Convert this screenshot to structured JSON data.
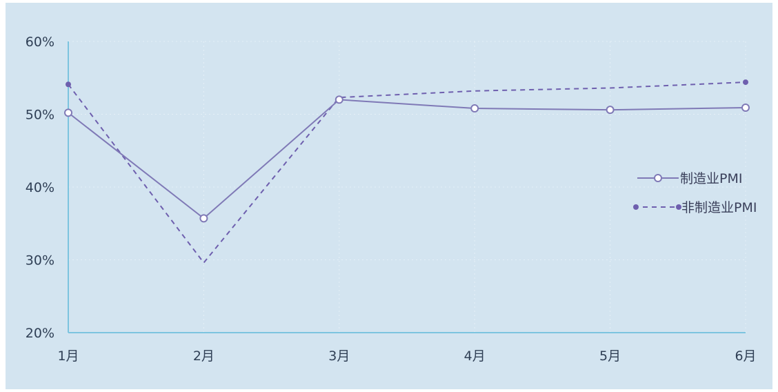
{
  "chart_data": {
    "type": "line",
    "categories": [
      "1月",
      "2月",
      "3月",
      "4月",
      "5月",
      "6月"
    ],
    "yticks": [
      "20%",
      "30%",
      "40%",
      "50%",
      "60%"
    ],
    "ylim": [
      20,
      60
    ],
    "grid": true,
    "legend_position": "right",
    "series": [
      {
        "name": "制造业PMI",
        "values": [
          50.2,
          35.7,
          52.0,
          50.8,
          50.6,
          50.9
        ],
        "color": "#7f79b6",
        "style": "solid",
        "marker": "hollow-circle"
      },
      {
        "name": "非制造业PMI",
        "values": [
          54.1,
          29.6,
          52.3,
          53.2,
          53.6,
          54.4
        ],
        "color": "#6e5fae",
        "style": "dashed",
        "marker": "filled-circle"
      }
    ]
  },
  "colors": {
    "background": "#d3e4f0",
    "axis": "#7cc4df",
    "grid": "#e6f0f7"
  }
}
